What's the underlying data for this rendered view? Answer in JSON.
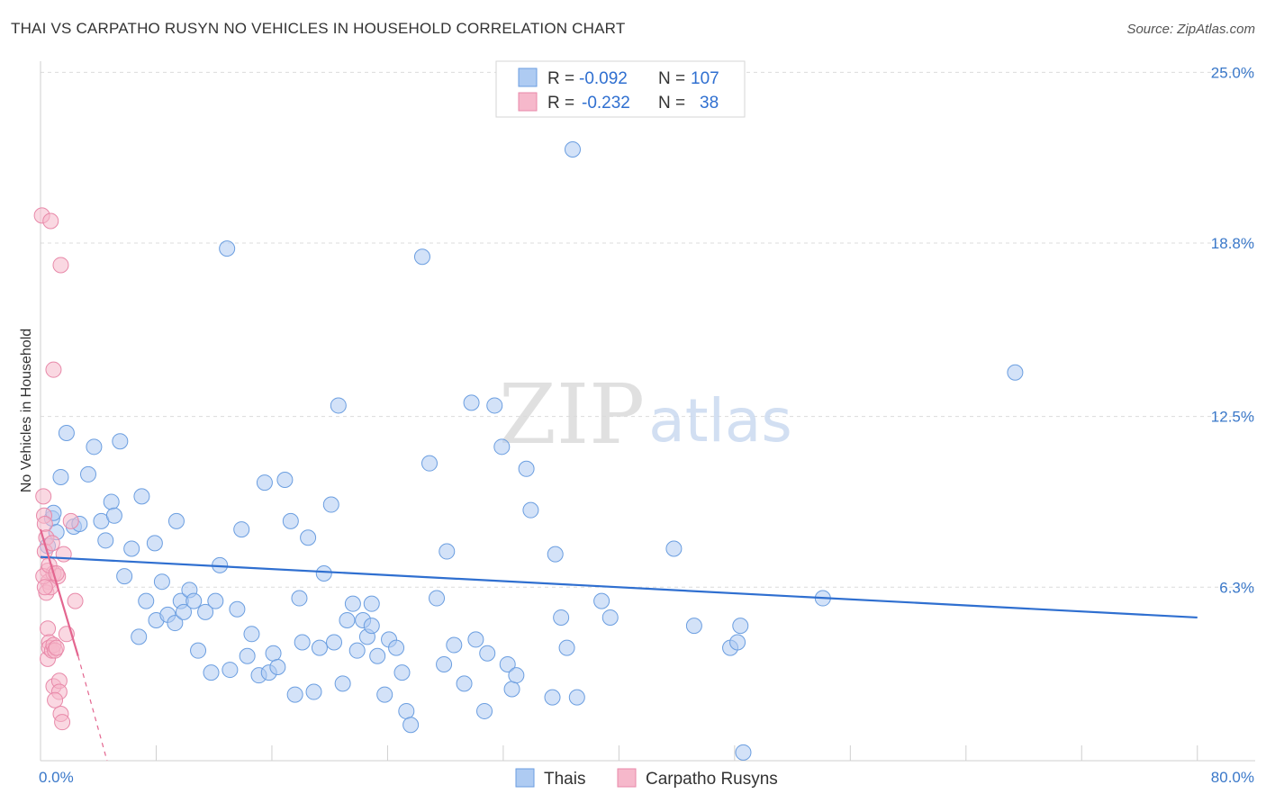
{
  "title": "THAI VS CARPATHO RUSYN NO VEHICLES IN HOUSEHOLD CORRELATION CHART",
  "source": "Source: ZipAtlas.com",
  "watermark": {
    "zip": "ZIP",
    "atlas": "atlas"
  },
  "legend_top": [
    {
      "r_label": "R =",
      "r_value": "-0.092",
      "n_label": "N =",
      "n_value": "107"
    },
    {
      "r_label": "R =",
      "r_value": "-0.232",
      "n_label": "N =",
      "n_value": "38"
    }
  ],
  "legend_bottom": [
    {
      "label": "Thais"
    },
    {
      "label": "Carpatho Rusyns"
    }
  ],
  "colors": {
    "thai_fill": "#aecbf2",
    "thai_stroke": "#6b9ee0",
    "thai_line": "#2f6fd0",
    "rusyn_fill": "#f6b8cb",
    "rusyn_stroke": "#e889a9",
    "rusyn_line": "#e3658f",
    "axis_text": "#3a78c9",
    "grid": "#dcdcdc"
  },
  "chart_data": {
    "type": "scatter",
    "title": "THAI VS CARPATHO RUSYN NO VEHICLES IN HOUSEHOLD CORRELATION CHART",
    "xlabel": "",
    "ylabel": "No Vehicles in Household",
    "xlim": [
      0,
      84
    ],
    "ylim": [
      0,
      25.6
    ],
    "x_tick_labels": [
      {
        "value": 0,
        "label": "0.0%"
      },
      {
        "value": 80,
        "label": "80.0%"
      }
    ],
    "y_tick_labels": [
      {
        "value": 6.3,
        "label": "6.3%"
      },
      {
        "value": 12.5,
        "label": "12.5%"
      },
      {
        "value": 18.8,
        "label": "18.8%"
      },
      {
        "value": 25.0,
        "label": "25.0%"
      }
    ],
    "series": [
      {
        "name": "Thais",
        "r": -0.092,
        "n": 107,
        "trend": {
          "x": [
            0,
            80
          ],
          "y": [
            7.4,
            5.2
          ]
        },
        "points": [
          [
            0.5,
            7.8
          ],
          [
            0.8,
            8.8
          ],
          [
            0.9,
            9.0
          ],
          [
            1.1,
            8.3
          ],
          [
            1.4,
            10.3
          ],
          [
            1.8,
            11.9
          ],
          [
            2.3,
            8.5
          ],
          [
            2.7,
            8.6
          ],
          [
            3.3,
            10.4
          ],
          [
            3.7,
            11.4
          ],
          [
            4.2,
            8.7
          ],
          [
            4.5,
            8.0
          ],
          [
            4.9,
            9.4
          ],
          [
            5.1,
            8.9
          ],
          [
            5.5,
            11.6
          ],
          [
            5.8,
            6.7
          ],
          [
            6.3,
            7.7
          ],
          [
            6.8,
            4.5
          ],
          [
            7.0,
            9.6
          ],
          [
            7.3,
            5.8
          ],
          [
            7.9,
            7.9
          ],
          [
            8.0,
            5.1
          ],
          [
            8.4,
            6.5
          ],
          [
            8.8,
            5.3
          ],
          [
            9.3,
            5.0
          ],
          [
            9.4,
            8.7
          ],
          [
            9.7,
            5.8
          ],
          [
            9.9,
            5.4
          ],
          [
            10.3,
            6.2
          ],
          [
            10.6,
            5.8
          ],
          [
            10.9,
            4.0
          ],
          [
            11.4,
            5.4
          ],
          [
            11.8,
            3.2
          ],
          [
            12.1,
            5.8
          ],
          [
            12.4,
            7.1
          ],
          [
            12.9,
            18.6
          ],
          [
            13.1,
            3.3
          ],
          [
            13.6,
            5.5
          ],
          [
            13.9,
            8.4
          ],
          [
            14.3,
            3.8
          ],
          [
            14.6,
            4.6
          ],
          [
            15.1,
            3.1
          ],
          [
            15.5,
            10.1
          ],
          [
            15.8,
            3.2
          ],
          [
            16.1,
            3.9
          ],
          [
            16.4,
            3.4
          ],
          [
            16.9,
            10.2
          ],
          [
            17.3,
            8.7
          ],
          [
            17.6,
            2.4
          ],
          [
            17.9,
            5.9
          ],
          [
            18.1,
            4.3
          ],
          [
            18.5,
            8.1
          ],
          [
            18.9,
            2.5
          ],
          [
            19.3,
            4.1
          ],
          [
            19.6,
            6.8
          ],
          [
            20.1,
            9.3
          ],
          [
            20.3,
            4.3
          ],
          [
            20.6,
            12.9
          ],
          [
            20.9,
            2.8
          ],
          [
            21.2,
            5.1
          ],
          [
            21.6,
            5.7
          ],
          [
            21.9,
            4.0
          ],
          [
            22.3,
            5.1
          ],
          [
            22.6,
            4.5
          ],
          [
            22.9,
            5.7
          ],
          [
            22.9,
            4.9
          ],
          [
            23.3,
            3.8
          ],
          [
            23.8,
            2.4
          ],
          [
            24.1,
            4.4
          ],
          [
            24.6,
            4.1
          ],
          [
            25.0,
            3.2
          ],
          [
            25.3,
            1.8
          ],
          [
            25.6,
            1.3
          ],
          [
            26.4,
            18.3
          ],
          [
            26.9,
            10.8
          ],
          [
            27.4,
            5.9
          ],
          [
            27.9,
            3.5
          ],
          [
            28.1,
            7.6
          ],
          [
            28.6,
            4.2
          ],
          [
            29.3,
            2.8
          ],
          [
            29.8,
            13.0
          ],
          [
            30.1,
            4.4
          ],
          [
            30.7,
            1.8
          ],
          [
            30.9,
            3.9
          ],
          [
            31.4,
            12.9
          ],
          [
            31.9,
            11.4
          ],
          [
            32.3,
            3.5
          ],
          [
            32.6,
            2.6
          ],
          [
            32.9,
            3.1
          ],
          [
            33.6,
            10.6
          ],
          [
            33.9,
            9.1
          ],
          [
            35.4,
            2.3
          ],
          [
            35.6,
            7.5
          ],
          [
            36.0,
            5.2
          ],
          [
            36.4,
            4.1
          ],
          [
            36.8,
            22.2
          ],
          [
            37.1,
            2.3
          ],
          [
            38.8,
            5.8
          ],
          [
            39.4,
            5.2
          ],
          [
            43.8,
            7.7
          ],
          [
            45.2,
            4.9
          ],
          [
            47.7,
            4.1
          ],
          [
            48.2,
            4.3
          ],
          [
            48.4,
            4.9
          ],
          [
            48.6,
            0.3
          ],
          [
            54.1,
            5.9
          ],
          [
            67.4,
            14.1
          ]
        ]
      },
      {
        "name": "Carpatho Rusyns",
        "r": -0.232,
        "n": 38,
        "trend": {
          "x": [
            0,
            2.6
          ],
          "y": [
            8.4,
            3.8
          ]
        },
        "trend_dashed_extension": {
          "x": [
            2.6,
            4.6
          ],
          "y": [
            3.8,
            0.0
          ]
        },
        "points": [
          [
            0.1,
            19.8
          ],
          [
            0.2,
            9.6
          ],
          [
            0.25,
            8.9
          ],
          [
            0.3,
            8.6
          ],
          [
            0.4,
            8.1
          ],
          [
            0.3,
            7.6
          ],
          [
            0.5,
            6.9
          ],
          [
            0.55,
            6.5
          ],
          [
            0.4,
            6.1
          ],
          [
            0.5,
            4.8
          ],
          [
            0.6,
            4.3
          ],
          [
            0.5,
            3.7
          ],
          [
            0.6,
            4.1
          ],
          [
            0.7,
            6.3
          ],
          [
            0.8,
            7.9
          ],
          [
            0.9,
            6.8
          ],
          [
            0.8,
            4.0
          ],
          [
            0.9,
            4.2
          ],
          [
            1.0,
            4.0
          ],
          [
            1.1,
            4.1
          ],
          [
            1.2,
            6.7
          ],
          [
            0.9,
            2.7
          ],
          [
            1.3,
            2.9
          ],
          [
            1.3,
            2.5
          ],
          [
            1.0,
            2.2
          ],
          [
            1.4,
            1.7
          ],
          [
            1.5,
            1.4
          ],
          [
            1.6,
            7.5
          ],
          [
            1.8,
            4.6
          ],
          [
            2.1,
            8.7
          ],
          [
            2.4,
            5.8
          ],
          [
            0.7,
            19.6
          ],
          [
            1.4,
            18.0
          ],
          [
            0.9,
            14.2
          ],
          [
            0.2,
            6.7
          ],
          [
            0.6,
            7.1
          ],
          [
            1.1,
            6.8
          ],
          [
            0.3,
            6.3
          ]
        ]
      }
    ]
  }
}
